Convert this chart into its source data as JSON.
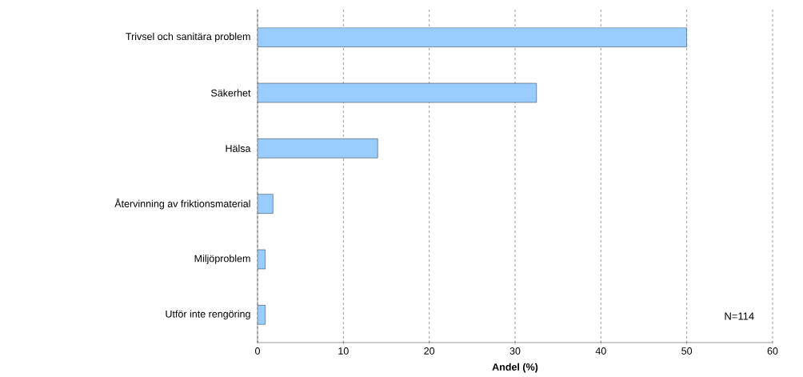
{
  "chart_data": {
    "type": "bar",
    "orientation": "horizontal",
    "xlabel": "Andel (%)",
    "categories": [
      "Trivsel och sanitära problem",
      "Säkerhet",
      "Hälsa",
      "Återvinning av friktionsmaterial",
      "Miljöproblem",
      "Utför inte rengöring"
    ],
    "values": [
      50,
      32.5,
      14,
      1.8,
      0.9,
      0.9
    ],
    "color": "#99ccff",
    "xlim": [
      0,
      60
    ],
    "xticks": [
      0,
      10,
      20,
      30,
      40,
      50,
      60
    ],
    "grid": "x",
    "annotations": [
      "N=114"
    ]
  }
}
